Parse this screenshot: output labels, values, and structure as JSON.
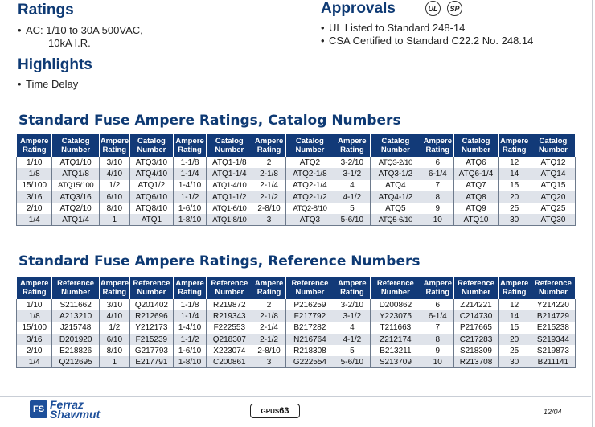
{
  "ratings": {
    "title": "Ratings",
    "line1": "AC: 1/10 to 30A 500VAC,",
    "line2": "10kA I.R."
  },
  "highlights": {
    "title": "Highlights",
    "item": "Time Delay"
  },
  "approvals": {
    "title": "Approvals",
    "ul_mark": "UL",
    "csa_mark": "SP",
    "item1": "UL Listed to Standard 248-14",
    "item2": "CSA Certified to Standard C22.2 No. 248.14"
  },
  "catalog": {
    "title": "Standard Fuse Ampere Ratings, Catalog Numbers",
    "headers": [
      [
        "Ampere",
        "Rating"
      ],
      [
        "Catalog",
        "Number"
      ],
      [
        "Ampere",
        "Rating"
      ],
      [
        "Catalog",
        "Number"
      ],
      [
        "Ampere",
        "Rating"
      ],
      [
        "Catalog",
        "Number"
      ],
      [
        "Ampere",
        "Rating"
      ],
      [
        "Catalog",
        "Number"
      ],
      [
        "Ampere",
        "Rating"
      ],
      [
        "Catalog",
        "Number"
      ],
      [
        "Ampere",
        "Rating"
      ],
      [
        "Catalog",
        "Number"
      ],
      [
        "Ampere",
        "Rating"
      ],
      [
        "Catalog",
        "Number"
      ]
    ],
    "rows": [
      [
        "1/10",
        "ATQ1/10",
        "3/10",
        "ATQ3/10",
        "1-1/8",
        "ATQ1-1/8",
        "2",
        "ATQ2",
        "3-2/10",
        "ATQ3-2/10",
        "6",
        "ATQ6",
        "12",
        "ATQ12"
      ],
      [
        "1/8",
        "ATQ1/8",
        "4/10",
        "ATQ4/10",
        "1-1/4",
        "ATQ1-1/4",
        "2-1/8",
        "ATQ2-1/8",
        "3-1/2",
        "ATQ3-1/2",
        "6-1/4",
        "ATQ6-1/4",
        "14",
        "ATQ14"
      ],
      [
        "15/100",
        "ATQ15/100",
        "1/2",
        "ATQ1/2",
        "1-4/10",
        "ATQ1-4/10",
        "2-1/4",
        "ATQ2-1/4",
        "4",
        "ATQ4",
        "7",
        "ATQ7",
        "15",
        "ATQ15"
      ],
      [
        "3/16",
        "ATQ3/16",
        "6/10",
        "ATQ6/10",
        "1-1/2",
        "ATQ1-1/2",
        "2-1/2",
        "ATQ2-1/2",
        "4-1/2",
        "ATQ4-1/2",
        "8",
        "ATQ8",
        "20",
        "ATQ20"
      ],
      [
        "2/10",
        "ATQ2/10",
        "8/10",
        "ATQ8/10",
        "1-6/10",
        "ATQ1-6/10",
        "2-8/10",
        "ATQ2-8/10",
        "5",
        "ATQ5",
        "9",
        "ATQ9",
        "25",
        "ATQ25"
      ],
      [
        "1/4",
        "ATQ1/4",
        "1",
        "ATQ1",
        "1-8/10",
        "ATQ1-8/10",
        "3",
        "ATQ3",
        "5-6/10",
        "ATQ5-6/10",
        "10",
        "ATQ10",
        "30",
        "ATQ30"
      ]
    ]
  },
  "reference": {
    "title": "Standard Fuse Ampere Ratings, Reference Numbers",
    "headers": [
      [
        "Ampere",
        "Rating"
      ],
      [
        "Reference",
        "Number"
      ],
      [
        "Ampere",
        "Rating"
      ],
      [
        "Reference",
        "Number"
      ],
      [
        "Ampere",
        "Rating"
      ],
      [
        "Reference",
        "Number"
      ],
      [
        "Ampere",
        "Rating"
      ],
      [
        "Reference",
        "Number"
      ],
      [
        "Ampere",
        "Rating"
      ],
      [
        "Reference",
        "Number"
      ],
      [
        "Ampere",
        "Rating"
      ],
      [
        "Reference",
        "Number"
      ],
      [
        "Ampere",
        "Rating"
      ],
      [
        "Reference",
        "Number"
      ]
    ],
    "rows": [
      [
        "1/10",
        "S211662",
        "3/10",
        "Q201402",
        "1-1/8",
        "R219872",
        "2",
        "P216259",
        "3-2/10",
        "D200862",
        "6",
        "Z214221",
        "12",
        "Y214220"
      ],
      [
        "1/8",
        "A213210",
        "4/10",
        "R212696",
        "1-1/4",
        "R219343",
        "2-1/8",
        "F217792",
        "3-1/2",
        "Y223075",
        "6-1/4",
        "C214730",
        "14",
        "B214729"
      ],
      [
        "15/100",
        "J215748",
        "1/2",
        "Y212173",
        "1-4/10",
        "F222553",
        "2-1/4",
        "B217282",
        "4",
        "T211663",
        "7",
        "P217665",
        "15",
        "E215238"
      ],
      [
        "3/16",
        "D201920",
        "6/10",
        "F215239",
        "1-1/2",
        "Q218307",
        "2-1/2",
        "N216764",
        "4-1/2",
        "Z212174",
        "8",
        "C217283",
        "20",
        "S219344"
      ],
      [
        "2/10",
        "E218826",
        "8/10",
        "G217793",
        "1-6/10",
        "X223074",
        "2-8/10",
        "R218308",
        "5",
        "B213211",
        "9",
        "S218309",
        "25",
        "S219873"
      ],
      [
        "1/4",
        "Q212695",
        "1",
        "E217791",
        "1-8/10",
        "C200861",
        "3",
        "G222554",
        "5-6/10",
        "S213709",
        "10",
        "R213708",
        "30",
        "B211141"
      ]
    ]
  },
  "footer": {
    "logo_mark": "FS",
    "logo_line1": "Ferraz",
    "logo_line2": "Shawmut",
    "page_code_prefix": "GPUS",
    "page_code_number": "63",
    "date": "12/04"
  }
}
